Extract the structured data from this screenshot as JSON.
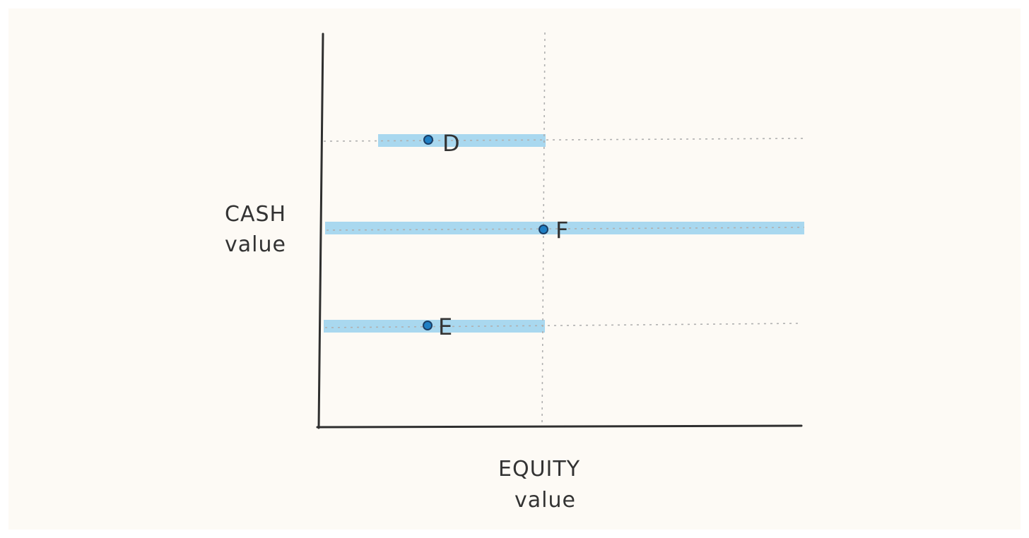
{
  "diagram": {
    "colors": {
      "background": "#fdfaf5",
      "axis": "#2f2f2f",
      "guide": "#b0b0b0",
      "band": "#a9d8ef",
      "point_fill": "#1f7fc4",
      "point_stroke": "#1b3f66"
    },
    "y_axis_title": [
      "CASH",
      "value"
    ],
    "x_axis_title": [
      "EQUITY",
      "value"
    ],
    "points": [
      {
        "label": "D"
      },
      {
        "label": "F"
      },
      {
        "label": "E"
      }
    ]
  }
}
